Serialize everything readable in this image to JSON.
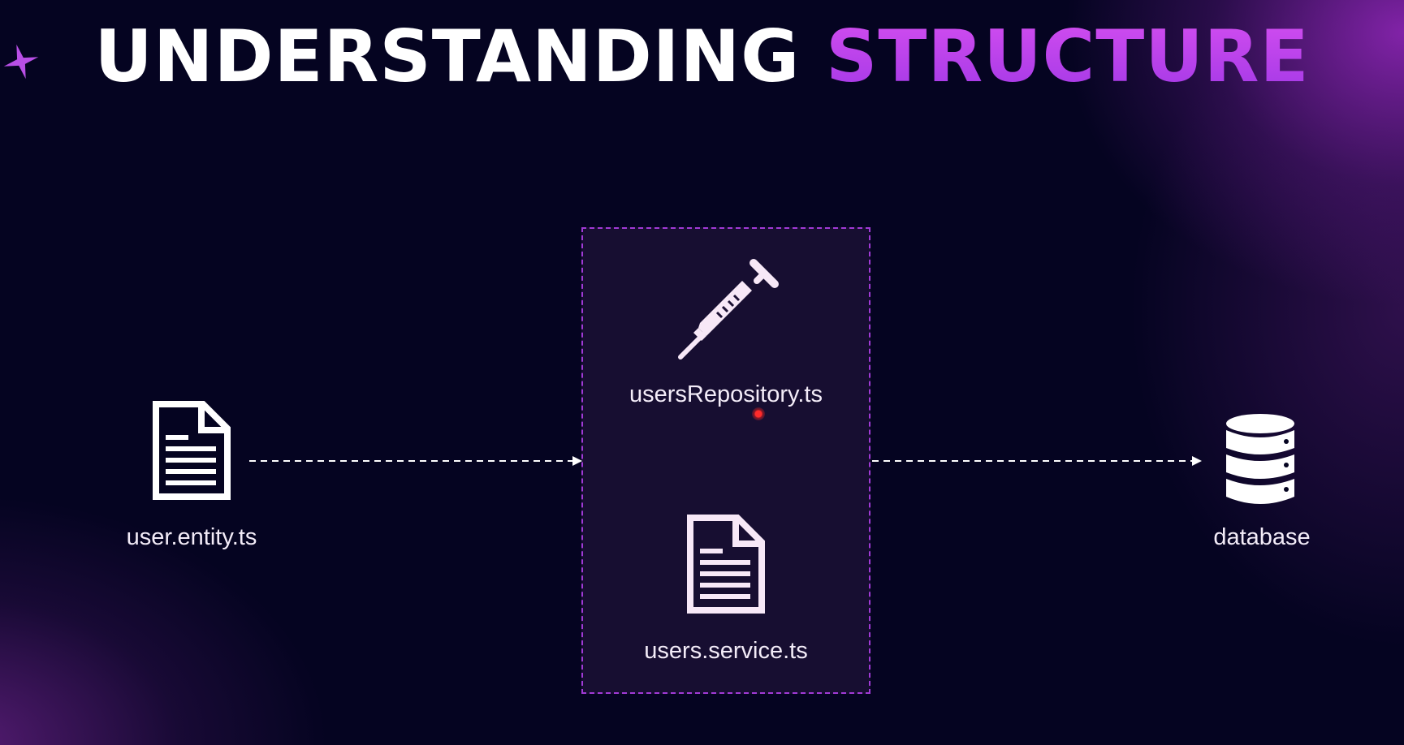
{
  "title": {
    "word1": "UNDERSTANDING",
    "word2": "STRUCTURE"
  },
  "nodes": {
    "entity": {
      "label": "user.entity.ts",
      "icon": "document-icon"
    },
    "repository": {
      "label": "usersRepository.ts",
      "icon": "syringe-icon"
    },
    "service": {
      "label": "users.service.ts",
      "icon": "document-icon"
    },
    "database": {
      "label": "database",
      "icon": "database-icon"
    }
  },
  "colors": {
    "background": "#050421",
    "accent": "#b23fe8",
    "box_border": "#a13ad6",
    "text": "#f3ecf8"
  }
}
